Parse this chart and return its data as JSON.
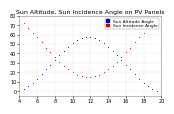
{
  "title": "Sun Altitude, Sun Incidence Angle on PV Panels",
  "legend_labels": [
    "Sun Altitude Angle",
    "Sun Incidence Angle"
  ],
  "legend_colors": [
    "#0000cc",
    "#cc0000"
  ],
  "bg_color": "#ffffff",
  "plot_bg_color": "#ffffff",
  "grid_color": "#aaaaaa",
  "xlim": [
    4,
    20
  ],
  "ylim": [
    -5,
    80
  ],
  "yticks": [
    0,
    10,
    20,
    30,
    40,
    50,
    60,
    70,
    80
  ],
  "xticks": [
    4,
    6,
    8,
    10,
    12,
    14,
    16,
    18,
    20
  ],
  "sun_altitude_x": [
    4.5,
    5.0,
    5.5,
    6.0,
    6.5,
    7.0,
    7.5,
    8.0,
    8.5,
    9.0,
    9.5,
    10.0,
    10.5,
    11.0,
    11.5,
    12.0,
    12.5,
    13.0,
    13.5,
    14.0,
    14.5,
    15.0,
    15.5,
    16.0,
    16.5,
    17.0,
    17.5,
    18.0,
    18.5,
    19.0,
    19.5
  ],
  "sun_altitude_y": [
    2,
    5,
    9,
    13,
    18,
    23,
    28,
    33,
    38,
    43,
    47,
    51,
    54,
    56,
    57,
    57,
    56,
    54,
    51,
    47,
    43,
    38,
    33,
    28,
    23,
    18,
    13,
    9,
    5,
    2,
    0
  ],
  "sun_incidence_x": [
    4.5,
    5.0,
    5.5,
    6.0,
    6.5,
    7.0,
    7.5,
    8.0,
    8.5,
    9.0,
    9.5,
    10.0,
    10.5,
    11.0,
    11.5,
    12.0,
    12.5,
    13.0,
    13.5,
    14.0,
    14.5,
    15.0,
    15.5,
    16.0,
    16.5,
    17.0,
    17.5,
    18.0,
    18.5,
    19.0,
    19.5
  ],
  "sun_incidence_y": [
    72,
    67,
    62,
    57,
    52,
    46,
    41,
    36,
    31,
    27,
    23,
    20,
    17,
    16,
    15,
    15,
    16,
    17,
    20,
    23,
    27,
    31,
    36,
    41,
    46,
    52,
    57,
    62,
    67,
    72,
    76
  ],
  "title_fontsize": 4.5,
  "tick_fontsize": 3.5,
  "legend_fontsize": 3.2,
  "text_color": "#000000"
}
